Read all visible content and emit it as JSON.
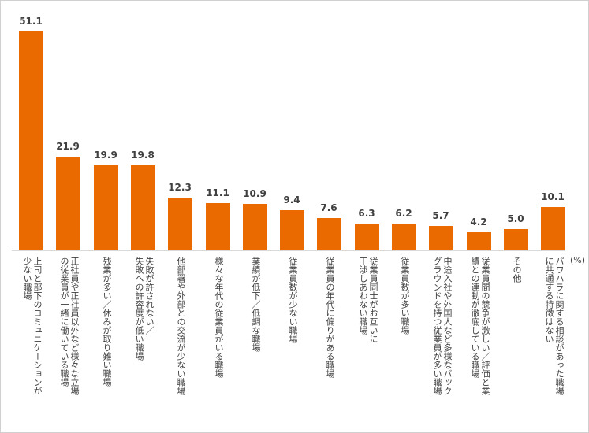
{
  "chart_data": {
    "type": "bar",
    "title": "",
    "xlabel": "",
    "ylabel": "",
    "unit": "(%)",
    "ylim": [
      0,
      55
    ],
    "grid": false,
    "legend": null,
    "color": "#eb6a00",
    "categories": [
      "上司と部下のコミュニケーションが少ない職場",
      "正社員や正社員以外など様々な立場の従業員が一緒に働いている職場",
      "残業が多い／休みが取り難い職場",
      "失敗が許されない／失敗への許容度が低い職場",
      "他部署や外部との交流が少ない職場",
      "様々な年代の従業員がいる職場",
      "業績が低下／低調な職場",
      "従業員数が少ない職場",
      "従業員の年代に偏りがある職場",
      "従業員同士がお互いに干渉しあわない職場",
      "従業員数が多い職場",
      "中途入社や外国人など多様なバックグラウンドを持つ従業員が多い職場",
      "従業員間の競争が激しい／評価と業績との連動が徹底している職場",
      "その他",
      "パワハラに関する相談があった職場に共通する特徴はない"
    ],
    "values": [
      51.1,
      21.9,
      19.9,
      19.8,
      12.3,
      11.1,
      10.9,
      9.4,
      7.6,
      6.3,
      6.2,
      5.7,
      4.2,
      5.0,
      10.1
    ],
    "value_labels": [
      "51.1",
      "21.9",
      "19.9",
      "19.8",
      "12.3",
      "11.1",
      "10.9",
      "9.4",
      "7.6",
      "6.3",
      "6.2",
      "5.7",
      "4.2",
      "5.0",
      "10.1"
    ],
    "label_lines": [
      [
        "上司と部下のコミュニケーションが",
        "少ない職場"
      ],
      [
        "正社員や正社員以外など様々な立場",
        "の従業員が一緒に働いている職場"
      ],
      [
        "残業が多い／休みが取り難い職場"
      ],
      [
        "失敗が許されない／",
        "失敗への許容度が低い職場"
      ],
      [
        "他部署や外部との交流が少ない職場"
      ],
      [
        "様々な年代の従業員がいる職場"
      ],
      [
        "業績が低下／低調な職場"
      ],
      [
        "従業員数が少ない職場"
      ],
      [
        "従業員の年代に偏りがある職場"
      ],
      [
        "従業員同士がお互いに",
        "干渉しあわない職場"
      ],
      [
        "従業員数が多い職場"
      ],
      [
        "中途入社や外国人など多様なバック",
        "グラウンドを持つ従業員が多い職場"
      ],
      [
        "従業員間の競争が激しい／評価と業",
        "績との連動が徹底している職場"
      ],
      [
        "その他"
      ],
      [
        "パワハラに関する相談があった職場",
        "に共通する特徴はない"
      ]
    ]
  }
}
